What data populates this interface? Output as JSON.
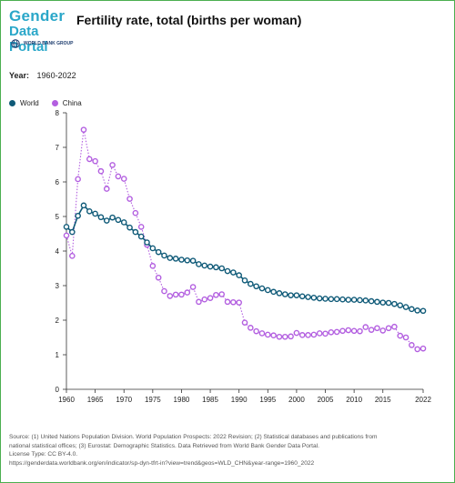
{
  "brand": {
    "logo_line1": "Gender",
    "logo_line2": "Data Portal",
    "org": "WORLD BANK GROUP"
  },
  "colors": {
    "world": "#0f5a78",
    "china": "#b35fe0",
    "frame": "#4caf50"
  },
  "filters": {
    "year_label": "Year:",
    "year_value": "1960-2022"
  },
  "chart_data": {
    "type": "line",
    "title": "Fertility rate, total (births per woman)",
    "xlabel": "",
    "ylabel": "",
    "ylim": [
      0,
      8
    ],
    "xlim": [
      1960,
      2022
    ],
    "grid": false,
    "legend_position": "top-left",
    "x_ticks": [
      1960,
      1965,
      1970,
      1975,
      1980,
      1985,
      1990,
      1995,
      2000,
      2005,
      2010,
      2015,
      2022
    ],
    "y_ticks": [
      0,
      1,
      2,
      3,
      4,
      5,
      6,
      7,
      8
    ],
    "x": [
      1960,
      1961,
      1962,
      1963,
      1964,
      1965,
      1966,
      1967,
      1968,
      1969,
      1970,
      1971,
      1972,
      1973,
      1974,
      1975,
      1976,
      1977,
      1978,
      1979,
      1980,
      1981,
      1982,
      1983,
      1984,
      1985,
      1986,
      1987,
      1988,
      1989,
      1990,
      1991,
      1992,
      1993,
      1994,
      1995,
      1996,
      1997,
      1998,
      1999,
      2000,
      2001,
      2002,
      2003,
      2004,
      2005,
      2006,
      2007,
      2008,
      2009,
      2010,
      2011,
      2012,
      2013,
      2014,
      2015,
      2016,
      2017,
      2018,
      2019,
      2020,
      2021,
      2022
    ],
    "series": [
      {
        "name": "World",
        "style": "solid",
        "values": [
          4.7,
          4.55,
          5.02,
          5.32,
          5.15,
          5.08,
          4.98,
          4.88,
          4.97,
          4.9,
          4.83,
          4.68,
          4.55,
          4.42,
          4.25,
          4.08,
          3.97,
          3.87,
          3.8,
          3.78,
          3.75,
          3.73,
          3.72,
          3.62,
          3.58,
          3.55,
          3.53,
          3.5,
          3.42,
          3.38,
          3.3,
          3.15,
          3.05,
          2.98,
          2.92,
          2.87,
          2.82,
          2.78,
          2.75,
          2.72,
          2.72,
          2.69,
          2.67,
          2.65,
          2.63,
          2.62,
          2.61,
          2.61,
          2.6,
          2.59,
          2.59,
          2.58,
          2.57,
          2.55,
          2.53,
          2.51,
          2.5,
          2.47,
          2.43,
          2.38,
          2.32,
          2.28,
          2.27
        ]
      },
      {
        "name": "China",
        "style": "dotted",
        "values": [
          4.45,
          3.86,
          6.08,
          7.51,
          6.66,
          6.6,
          6.31,
          5.8,
          6.49,
          6.16,
          6.09,
          5.51,
          5.1,
          4.7,
          4.18,
          3.57,
          3.23,
          2.84,
          2.7,
          2.74,
          2.74,
          2.8,
          2.96,
          2.53,
          2.6,
          2.64,
          2.73,
          2.75,
          2.53,
          2.52,
          2.51,
          1.93,
          1.78,
          1.68,
          1.62,
          1.58,
          1.56,
          1.52,
          1.52,
          1.53,
          1.63,
          1.57,
          1.57,
          1.58,
          1.62,
          1.61,
          1.65,
          1.66,
          1.69,
          1.71,
          1.69,
          1.68,
          1.8,
          1.72,
          1.77,
          1.7,
          1.77,
          1.81,
          1.55,
          1.5,
          1.28,
          1.16,
          1.18
        ]
      }
    ]
  },
  "footer": {
    "line1": "Source: (1) United Nations Population Division. World Population Prospects: 2022 Revision; (2) Statistical databases and publications from",
    "line2": "national statistical offices; (3) Eurostat: Demographic Statistics. Data Retrieved from World Bank Gender Data Portal.",
    "line3": "License Type: CC BY-4.0.",
    "line4": "https://genderdata.worldbank.org/en/indicator/sp-dyn-tfrt-in?view=trend&geos=WLD_CHN&year-range=1960_2022"
  }
}
